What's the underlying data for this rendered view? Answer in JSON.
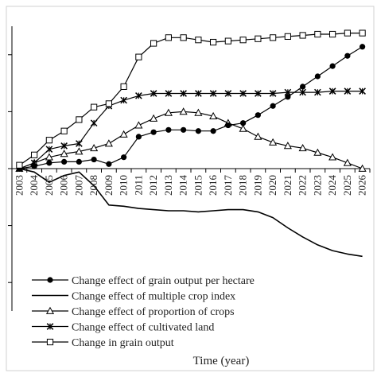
{
  "chart_data": {
    "type": "line",
    "xlabel": "Time (year)",
    "ylabel": "",
    "ylim": [
      -1.25,
      1.25
    ],
    "grid": false,
    "legend_position": "bottom-left",
    "x": [
      "2003",
      "2004",
      "2005",
      "2006",
      "2007",
      "2008",
      "2009",
      "2010",
      "2011",
      "2012",
      "2013",
      "2014",
      "2015",
      "2016",
      "2017",
      "2018",
      "2019",
      "2020",
      "2021",
      "2022",
      "2023",
      "2024",
      "2025",
      "2026"
    ],
    "series": [
      {
        "name": "Change effect of grain output per hectare",
        "marker": "circle-filled",
        "values": [
          0.0,
          0.02,
          0.05,
          0.06,
          0.06,
          0.08,
          0.04,
          0.1,
          0.28,
          0.32,
          0.34,
          0.34,
          0.33,
          0.33,
          0.38,
          0.4,
          0.47,
          0.55,
          0.63,
          0.72,
          0.81,
          0.9,
          0.99,
          1.07
        ]
      },
      {
        "name": "Change effect of multiple crop index",
        "marker": "none",
        "values": [
          0.0,
          -0.03,
          -0.12,
          -0.06,
          -0.03,
          -0.15,
          -0.32,
          -0.33,
          -0.35,
          -0.36,
          -0.37,
          -0.37,
          -0.38,
          -0.37,
          -0.36,
          -0.36,
          -0.38,
          -0.43,
          -0.52,
          -0.6,
          -0.67,
          -0.72,
          -0.75,
          -0.77
        ]
      },
      {
        "name": "Change effect of proportion of crops",
        "marker": "triangle-open",
        "values": [
          0.0,
          0.05,
          0.1,
          0.13,
          0.15,
          0.18,
          0.22,
          0.3,
          0.38,
          0.44,
          0.49,
          0.5,
          0.49,
          0.46,
          0.4,
          0.35,
          0.28,
          0.23,
          0.2,
          0.18,
          0.14,
          0.1,
          0.05,
          0.0
        ]
      },
      {
        "name": "Change effect of cultivated land",
        "marker": "star",
        "values": [
          0.0,
          0.05,
          0.17,
          0.2,
          0.22,
          0.4,
          0.55,
          0.6,
          0.64,
          0.66,
          0.66,
          0.66,
          0.66,
          0.66,
          0.66,
          0.66,
          0.66,
          0.66,
          0.67,
          0.67,
          0.67,
          0.68,
          0.68,
          0.68
        ]
      },
      {
        "name": "Change in grain output",
        "marker": "square-open",
        "values": [
          0.03,
          0.12,
          0.25,
          0.33,
          0.43,
          0.54,
          0.57,
          0.72,
          0.98,
          1.1,
          1.15,
          1.15,
          1.13,
          1.11,
          1.12,
          1.13,
          1.14,
          1.15,
          1.16,
          1.17,
          1.18,
          1.18,
          1.19,
          1.19
        ]
      }
    ]
  }
}
